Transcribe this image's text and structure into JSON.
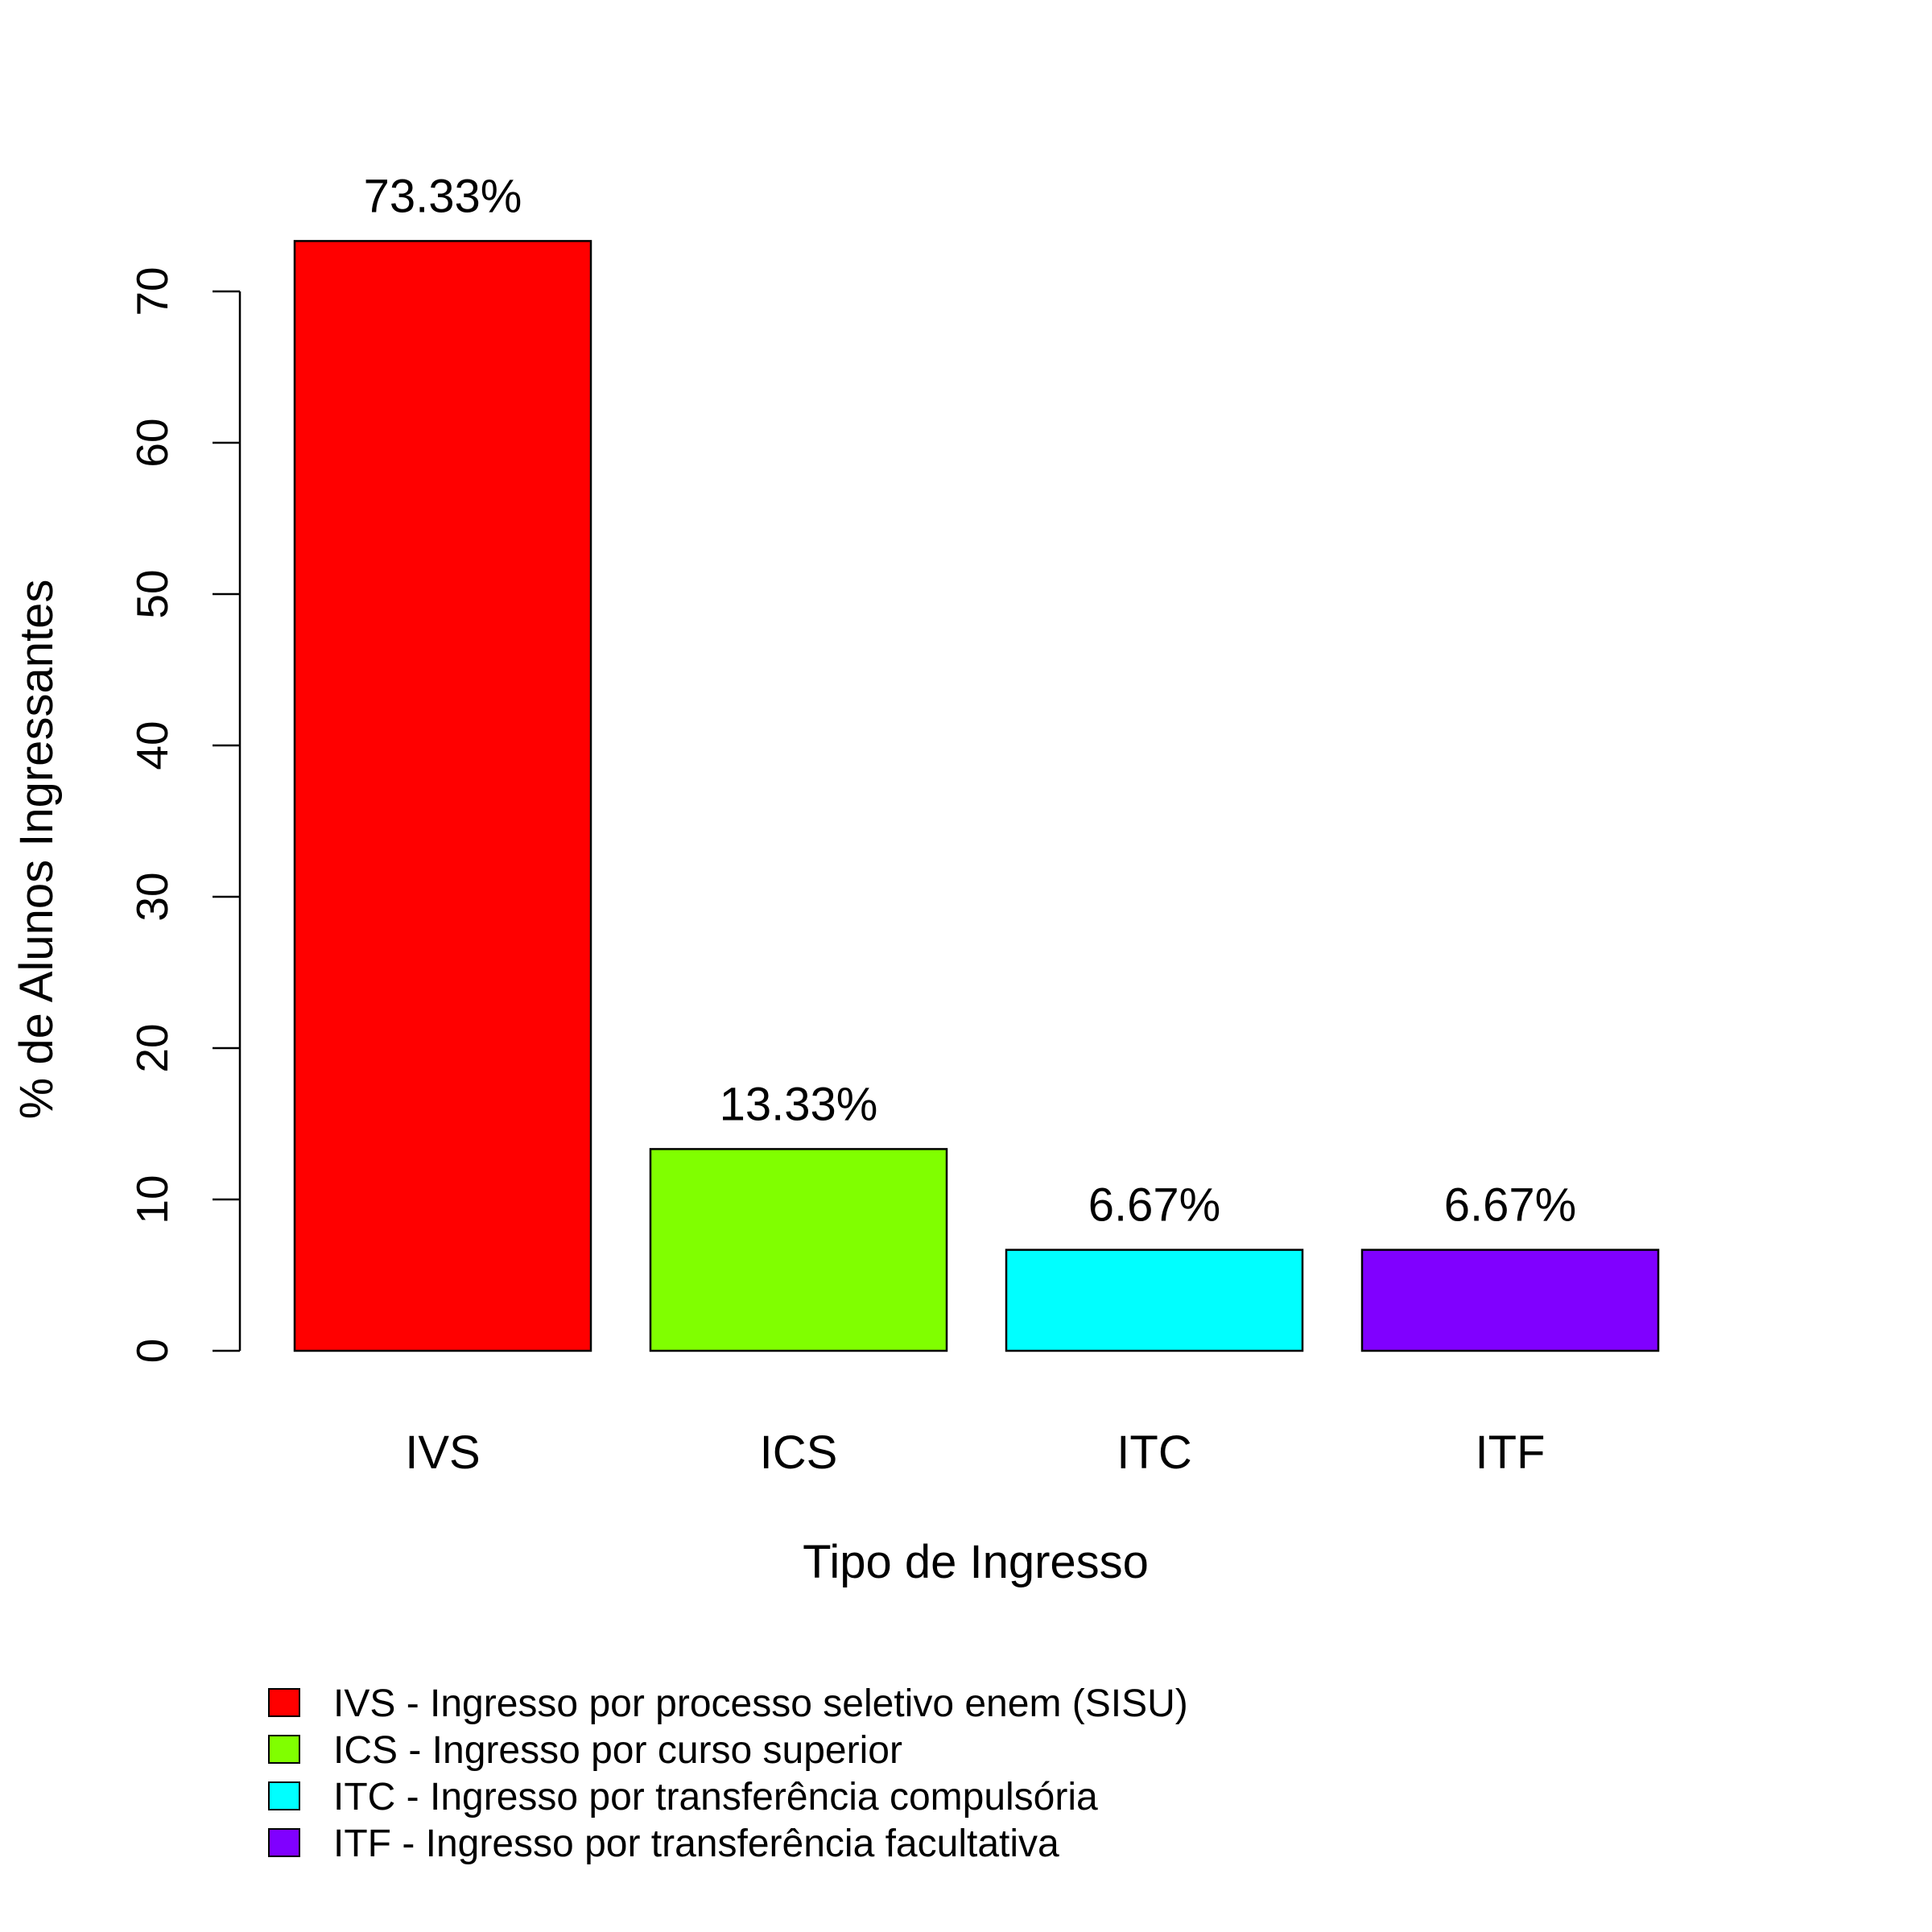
{
  "chart_data": {
    "type": "bar",
    "categories": [
      "IVS",
      "ICS",
      "ITC",
      "ITF"
    ],
    "values": [
      73.33,
      13.33,
      6.67,
      6.67
    ],
    "data_labels": [
      "73.33%",
      "13.33%",
      "6.67%",
      "6.67%"
    ],
    "colors": [
      "#FF0000",
      "#80FF00",
      "#00FFFF",
      "#8000FF"
    ],
    "xlabel": "Tipo de Ingresso",
    "ylabel": "% de Alunos Ingressantes",
    "ylim": [
      0,
      80
    ],
    "yticks": [
      0,
      10,
      20,
      30,
      40,
      50,
      60,
      70
    ],
    "grid": false,
    "legend_position": "bottom-left",
    "legend": [
      "IVS - Ingresso por processo seletivo enem (SISU)",
      "ICS - Ingresso por curso superior",
      "ITC - Ingresso por transferência compulsória",
      "ITF - Ingresso por transferência facultativa"
    ]
  }
}
